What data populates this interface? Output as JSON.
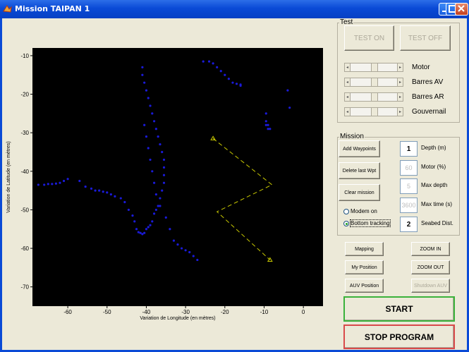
{
  "window": {
    "title": "Mission TAIPAN 1"
  },
  "test_panel": {
    "title": "Test",
    "test_on": "TEST ON",
    "test_off": "TEST OFF",
    "sliders": [
      {
        "label": "Motor"
      },
      {
        "label": "Barres AV"
      },
      {
        "label": "Barres AR"
      },
      {
        "label": "Gouvernail"
      }
    ]
  },
  "mission_panel": {
    "title": "Mission",
    "add_waypoints": "Add Waypoints",
    "delete_last": "Delete last Wpt",
    "clear_mission": "Clear mission",
    "modem_on": "Modem on",
    "bottom_tracking": "Bottom tracking",
    "params": [
      {
        "value": "1",
        "label": "Depth (m)",
        "enabled": true
      },
      {
        "value": "60",
        "label": "Motor (%)",
        "enabled": false
      },
      {
        "value": "5",
        "label": "Max depth",
        "enabled": false
      },
      {
        "value": "3600",
        "label": "Max time (s)",
        "enabled": false
      },
      {
        "value": "2",
        "label": "Seabed Dist.",
        "enabled": true
      }
    ]
  },
  "controls": {
    "mapping": "Mapping",
    "zoom_in": "ZOOM IN",
    "my_position": "My Position",
    "zoom_out": "ZOOM OUT",
    "auv_position": "AUV Position",
    "shutdown_auv": "Shutdown AUV",
    "start": "START",
    "stop": "STOP PROGRAM"
  },
  "colors": {
    "plot_bg": "#000000",
    "track": "#1a1ad8",
    "waypoint": "#c8c800",
    "start_border": "#3bb23b",
    "stop_border": "#d94a4a"
  },
  "chart_data": {
    "type": "scatter",
    "xlabel": "Variation de Longitude (en mètres)",
    "ylabel": "Variation de Latitude (en mètres)",
    "xlim": [
      -69,
      5
    ],
    "ylim": [
      -75,
      -8
    ],
    "xticks": [
      -60,
      -50,
      -40,
      -30,
      -20,
      -10,
      0
    ],
    "yticks": [
      -10,
      -20,
      -30,
      -40,
      -50,
      -60,
      -70
    ],
    "series": [
      {
        "marker": "dot",
        "x": [
          -67.5,
          -66,
          -65,
          -64,
          -63,
          -62,
          -61,
          -60,
          -57,
          -55.5,
          -54,
          -53,
          -52,
          -51,
          -50,
          -49,
          -48,
          -46.5,
          -45.5,
          -44.5,
          -43.5,
          -43,
          -42.5,
          -42,
          -41.5,
          -41,
          -40.5,
          -40,
          -39.5,
          -39,
          -38.5,
          -38,
          -37.5,
          -37,
          -36.5,
          -36,
          -35.5,
          -35.5,
          -35.5,
          -35.5,
          -36,
          -36.5,
          -37,
          -37.5,
          -38,
          -38.5,
          -39,
          -39.5,
          -40,
          -40.5,
          -41,
          -41,
          -40.5,
          -40,
          -39.5,
          -39,
          -38.5,
          -38,
          -37.5,
          -36.5,
          -35,
          -34,
          -33,
          -32,
          -31,
          -30,
          -29,
          -28,
          -27,
          -25.5,
          -24,
          -23,
          -22,
          -21,
          -20,
          -19,
          -18,
          -17,
          -16,
          -16,
          -9.5,
          -9.5,
          -9.5,
          -9,
          -9,
          -8.5,
          -4,
          -3.5
        ],
        "y": [
          -43.5,
          -43.5,
          -43.3,
          -43.3,
          -43.2,
          -43,
          -42.5,
          -42,
          -42.5,
          -44,
          -44.5,
          -45,
          -45,
          -45.3,
          -45.5,
          -46,
          -46.5,
          -47,
          -48,
          -50,
          -51.5,
          -53,
          -55,
          -55.8,
          -56,
          -56.3,
          -56,
          -55,
          -54.5,
          -54,
          -53,
          -51,
          -50,
          -49,
          -47,
          -45,
          -43,
          -41,
          -39,
          -37,
          -35,
          -33,
          -31,
          -29,
          -27,
          -25,
          -23,
          -21,
          -19,
          -17,
          -15,
          -13,
          -28,
          -31,
          -34,
          -37,
          -40,
          -43,
          -46,
          -49,
          -52,
          -55,
          -58,
          -59,
          -60,
          -60.5,
          -61,
          -62,
          -63,
          -11.5,
          -11.5,
          -12,
          -13,
          -14,
          -15,
          -16,
          -17,
          -17.3,
          -17.5,
          -17.8,
          -25,
          -27,
          -28,
          -28,
          -29,
          -29,
          -19,
          -23.5
        ]
      },
      {
        "marker": "triangle",
        "x": [
          -23,
          -8,
          -22,
          -8.5
        ],
        "y": [
          -31.5,
          -43.5,
          -50.5,
          -63
        ]
      }
    ],
    "grid": false
  }
}
